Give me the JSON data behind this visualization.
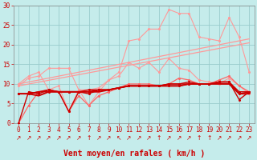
{
  "xlabel": "Vent moyen/en rafales ( km/h )",
  "xlim": [
    -0.5,
    23.5
  ],
  "ylim": [
    0,
    30
  ],
  "xticks": [
    0,
    1,
    2,
    3,
    4,
    5,
    6,
    7,
    8,
    9,
    10,
    11,
    12,
    13,
    14,
    15,
    16,
    17,
    18,
    19,
    20,
    21,
    22,
    23
  ],
  "yticks": [
    0,
    5,
    10,
    15,
    20,
    25,
    30
  ],
  "bg_color": "#c5eceb",
  "grid_color": "#99cccc",
  "pink_color": "#ff9999",
  "mid_red_color": "#ff6666",
  "dark_red_color": "#cc0000",
  "trend1_x": [
    0,
    23
  ],
  "trend1_y": [
    10.0,
    21.5
  ],
  "trend2_x": [
    0,
    23
  ],
  "trend2_y": [
    9.5,
    20.5
  ],
  "line_pink1_y": [
    9.5,
    11.5,
    12.0,
    14.0,
    14.0,
    14.0,
    8.5,
    8.5,
    9.0,
    11.0,
    13.0,
    21.0,
    21.5,
    24.0,
    24.0,
    29.0,
    28.0,
    28.0,
    22.0,
    21.5,
    21.0,
    27.0,
    22.0,
    13.0
  ],
  "line_pink2_y": [
    10.0,
    12.0,
    13.0,
    8.5,
    9.5,
    3.0,
    8.5,
    4.5,
    8.0,
    11.0,
    12.0,
    15.5,
    14.0,
    15.5,
    13.0,
    16.5,
    14.0,
    13.5,
    11.0,
    10.5,
    10.0,
    11.5,
    9.5,
    7.5
  ],
  "line_midred_y": [
    0.0,
    4.5,
    8.0,
    8.5,
    8.0,
    3.0,
    7.0,
    4.5,
    7.0,
    8.0,
    9.0,
    10.0,
    10.0,
    10.0,
    9.5,
    10.0,
    11.5,
    11.0,
    10.0,
    10.0,
    11.0,
    12.0,
    9.5,
    8.0
  ],
  "line_dark1_y": [
    0.0,
    8.0,
    7.5,
    8.5,
    8.0,
    3.0,
    8.0,
    7.5,
    8.5,
    8.5,
    9.0,
    9.5,
    9.5,
    9.5,
    9.5,
    10.0,
    10.0,
    10.5,
    10.0,
    10.0,
    10.5,
    10.5,
    6.0,
    8.0
  ],
  "line_dark2_y": [
    7.5,
    7.5,
    7.0,
    8.0,
    8.0,
    8.0,
    8.0,
    8.0,
    8.0,
    8.5,
    9.0,
    9.5,
    9.5,
    9.5,
    9.5,
    9.5,
    9.5,
    10.0,
    10.0,
    10.0,
    10.0,
    10.0,
    7.5,
    7.5
  ],
  "line_dark3_y": [
    7.5,
    7.5,
    8.0,
    8.5,
    8.0,
    8.0,
    8.0,
    8.0,
    8.5,
    8.5,
    9.0,
    9.5,
    9.5,
    9.5,
    9.5,
    9.5,
    9.5,
    10.0,
    10.0,
    10.0,
    10.5,
    10.5,
    7.5,
    8.0
  ],
  "line_dark4_y": [
    7.5,
    7.5,
    8.0,
    8.0,
    8.0,
    8.0,
    8.0,
    8.5,
    8.5,
    8.5,
    9.0,
    9.5,
    9.5,
    9.5,
    9.5,
    10.0,
    10.0,
    10.0,
    10.0,
    10.0,
    10.5,
    10.5,
    8.0,
    8.0
  ],
  "wind_symbols": [
    "↗",
    "↗",
    "↗",
    "↗",
    "↗",
    "↗",
    "↗",
    "↑",
    "↗",
    "↗",
    "↖",
    "↗",
    "↗",
    "↗",
    "↑",
    "↗",
    "↗",
    "↗",
    "↑",
    "↑",
    "↗",
    "↗",
    "↗",
    "↗"
  ],
  "xlabel_fontsize": 7,
  "tick_fontsize": 5.5,
  "wind_fontsize": 5.5
}
